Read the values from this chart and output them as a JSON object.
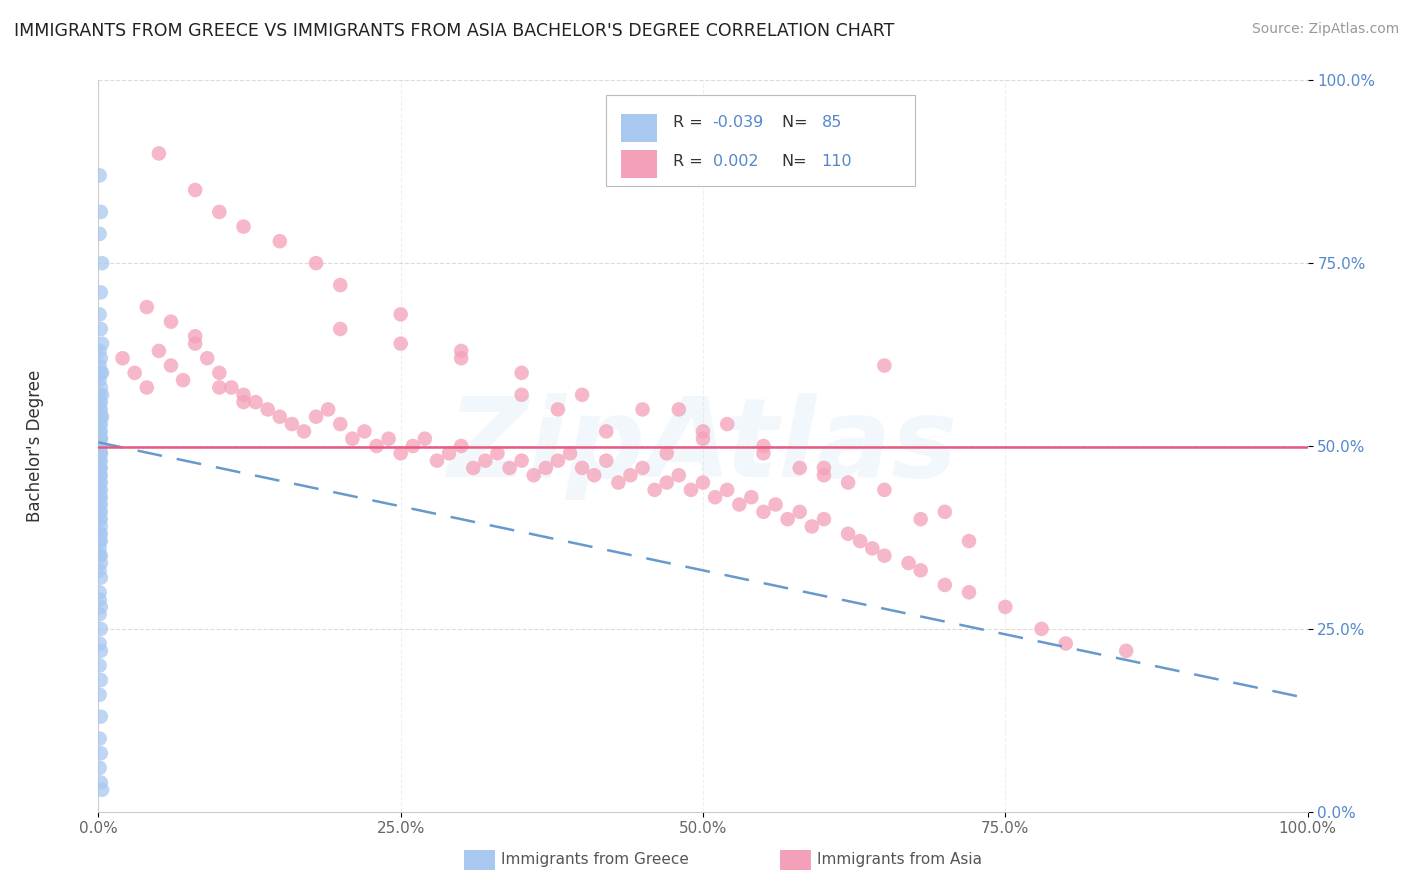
{
  "title": "IMMIGRANTS FROM GREECE VS IMMIGRANTS FROM ASIA BACHELOR'S DEGREE CORRELATION CHART",
  "source": "Source: ZipAtlas.com",
  "ylabel": "Bachelor's Degree",
  "xlim": [
    0,
    1.0
  ],
  "ylim": [
    0,
    1.0
  ],
  "xticks": [
    0,
    0.25,
    0.5,
    0.75,
    1.0
  ],
  "yticks": [
    0,
    0.25,
    0.5,
    0.75,
    1.0
  ],
  "xticklabels": [
    "0.0%",
    "25.0%",
    "50.0%",
    "75.0%",
    "100.0%"
  ],
  "yticklabels": [
    "0.0%",
    "25.0%",
    "50.0%",
    "75.0%",
    "100.0%"
  ],
  "legend_labels": [
    "Immigrants from Greece",
    "Immigrants from Asia"
  ],
  "r_greece": -0.039,
  "n_greece": 85,
  "r_asia": 0.002,
  "n_asia": 110,
  "blue_color": "#a8c8f0",
  "pink_color": "#f4a0b8",
  "blue_line_color": "#6699cc",
  "pink_line_color": "#e85880",
  "tick_color": "#5588cc",
  "watermark": "ZipAtlas",
  "greece_trend": [
    0.505,
    0.155
  ],
  "asia_trend_y": 0.498,
  "greece_x": [
    0.001,
    0.002,
    0.001,
    0.003,
    0.002,
    0.001,
    0.002,
    0.003,
    0.001,
    0.002,
    0.001,
    0.003,
    0.002,
    0.001,
    0.002,
    0.001,
    0.003,
    0.002,
    0.001,
    0.002,
    0.001,
    0.002,
    0.001,
    0.003,
    0.002,
    0.001,
    0.002,
    0.001,
    0.002,
    0.001,
    0.002,
    0.001,
    0.002,
    0.001,
    0.002,
    0.001,
    0.002,
    0.001,
    0.002,
    0.001,
    0.001,
    0.002,
    0.001,
    0.002,
    0.001,
    0.002,
    0.001,
    0.002,
    0.001,
    0.002,
    0.001,
    0.001,
    0.002,
    0.001,
    0.002,
    0.001,
    0.002,
    0.001,
    0.002,
    0.001,
    0.002,
    0.001,
    0.002,
    0.001,
    0.002,
    0.001,
    0.002,
    0.001,
    0.002,
    0.001,
    0.001,
    0.002,
    0.001,
    0.002,
    0.001,
    0.002,
    0.001,
    0.002,
    0.001,
    0.002,
    0.001,
    0.002,
    0.001,
    0.002,
    0.003
  ],
  "greece_y": [
    0.87,
    0.82,
    0.79,
    0.75,
    0.71,
    0.68,
    0.66,
    0.64,
    0.63,
    0.62,
    0.61,
    0.6,
    0.6,
    0.59,
    0.58,
    0.57,
    0.57,
    0.56,
    0.56,
    0.55,
    0.55,
    0.54,
    0.54,
    0.54,
    0.53,
    0.53,
    0.52,
    0.52,
    0.51,
    0.51,
    0.51,
    0.5,
    0.5,
    0.5,
    0.49,
    0.49,
    0.49,
    0.48,
    0.48,
    0.47,
    0.47,
    0.47,
    0.46,
    0.46,
    0.46,
    0.45,
    0.45,
    0.44,
    0.44,
    0.43,
    0.43,
    0.43,
    0.42,
    0.42,
    0.41,
    0.41,
    0.4,
    0.4,
    0.39,
    0.38,
    0.38,
    0.37,
    0.37,
    0.36,
    0.35,
    0.35,
    0.34,
    0.33,
    0.32,
    0.3,
    0.29,
    0.28,
    0.27,
    0.25,
    0.23,
    0.22,
    0.2,
    0.18,
    0.16,
    0.13,
    0.1,
    0.08,
    0.06,
    0.04,
    0.03
  ],
  "asia_x": [
    0.02,
    0.03,
    0.04,
    0.05,
    0.06,
    0.07,
    0.08,
    0.09,
    0.1,
    0.11,
    0.12,
    0.13,
    0.14,
    0.15,
    0.16,
    0.17,
    0.18,
    0.19,
    0.2,
    0.21,
    0.22,
    0.23,
    0.24,
    0.25,
    0.26,
    0.27,
    0.28,
    0.29,
    0.3,
    0.31,
    0.32,
    0.33,
    0.34,
    0.35,
    0.36,
    0.37,
    0.38,
    0.39,
    0.4,
    0.41,
    0.42,
    0.43,
    0.44,
    0.45,
    0.46,
    0.47,
    0.48,
    0.49,
    0.5,
    0.51,
    0.52,
    0.53,
    0.54,
    0.55,
    0.56,
    0.57,
    0.58,
    0.59,
    0.6,
    0.62,
    0.63,
    0.64,
    0.65,
    0.67,
    0.68,
    0.7,
    0.72,
    0.75,
    0.78,
    0.8,
    0.05,
    0.08,
    0.1,
    0.12,
    0.15,
    0.18,
    0.2,
    0.25,
    0.3,
    0.35,
    0.4,
    0.45,
    0.5,
    0.55,
    0.6,
    0.65,
    0.7,
    0.2,
    0.25,
    0.3,
    0.48,
    0.52,
    0.58,
    0.62,
    0.68,
    0.72,
    0.5,
    0.55,
    0.6,
    0.85,
    0.04,
    0.06,
    0.08,
    0.1,
    0.12,
    0.35,
    0.38,
    0.42,
    0.47,
    0.65
  ],
  "asia_y": [
    0.62,
    0.6,
    0.58,
    0.63,
    0.61,
    0.59,
    0.64,
    0.62,
    0.6,
    0.58,
    0.57,
    0.56,
    0.55,
    0.54,
    0.53,
    0.52,
    0.54,
    0.55,
    0.53,
    0.51,
    0.52,
    0.5,
    0.51,
    0.49,
    0.5,
    0.51,
    0.48,
    0.49,
    0.5,
    0.47,
    0.48,
    0.49,
    0.47,
    0.48,
    0.46,
    0.47,
    0.48,
    0.49,
    0.47,
    0.46,
    0.48,
    0.45,
    0.46,
    0.47,
    0.44,
    0.45,
    0.46,
    0.44,
    0.45,
    0.43,
    0.44,
    0.42,
    0.43,
    0.41,
    0.42,
    0.4,
    0.41,
    0.39,
    0.4,
    0.38,
    0.37,
    0.36,
    0.35,
    0.34,
    0.33,
    0.31,
    0.3,
    0.28,
    0.25,
    0.23,
    0.9,
    0.85,
    0.82,
    0.8,
    0.78,
    0.75,
    0.72,
    0.68,
    0.63,
    0.6,
    0.57,
    0.55,
    0.52,
    0.5,
    0.47,
    0.44,
    0.41,
    0.66,
    0.64,
    0.62,
    0.55,
    0.53,
    0.47,
    0.45,
    0.4,
    0.37,
    0.51,
    0.49,
    0.46,
    0.22,
    0.69,
    0.67,
    0.65,
    0.58,
    0.56,
    0.57,
    0.55,
    0.52,
    0.49,
    0.61
  ]
}
